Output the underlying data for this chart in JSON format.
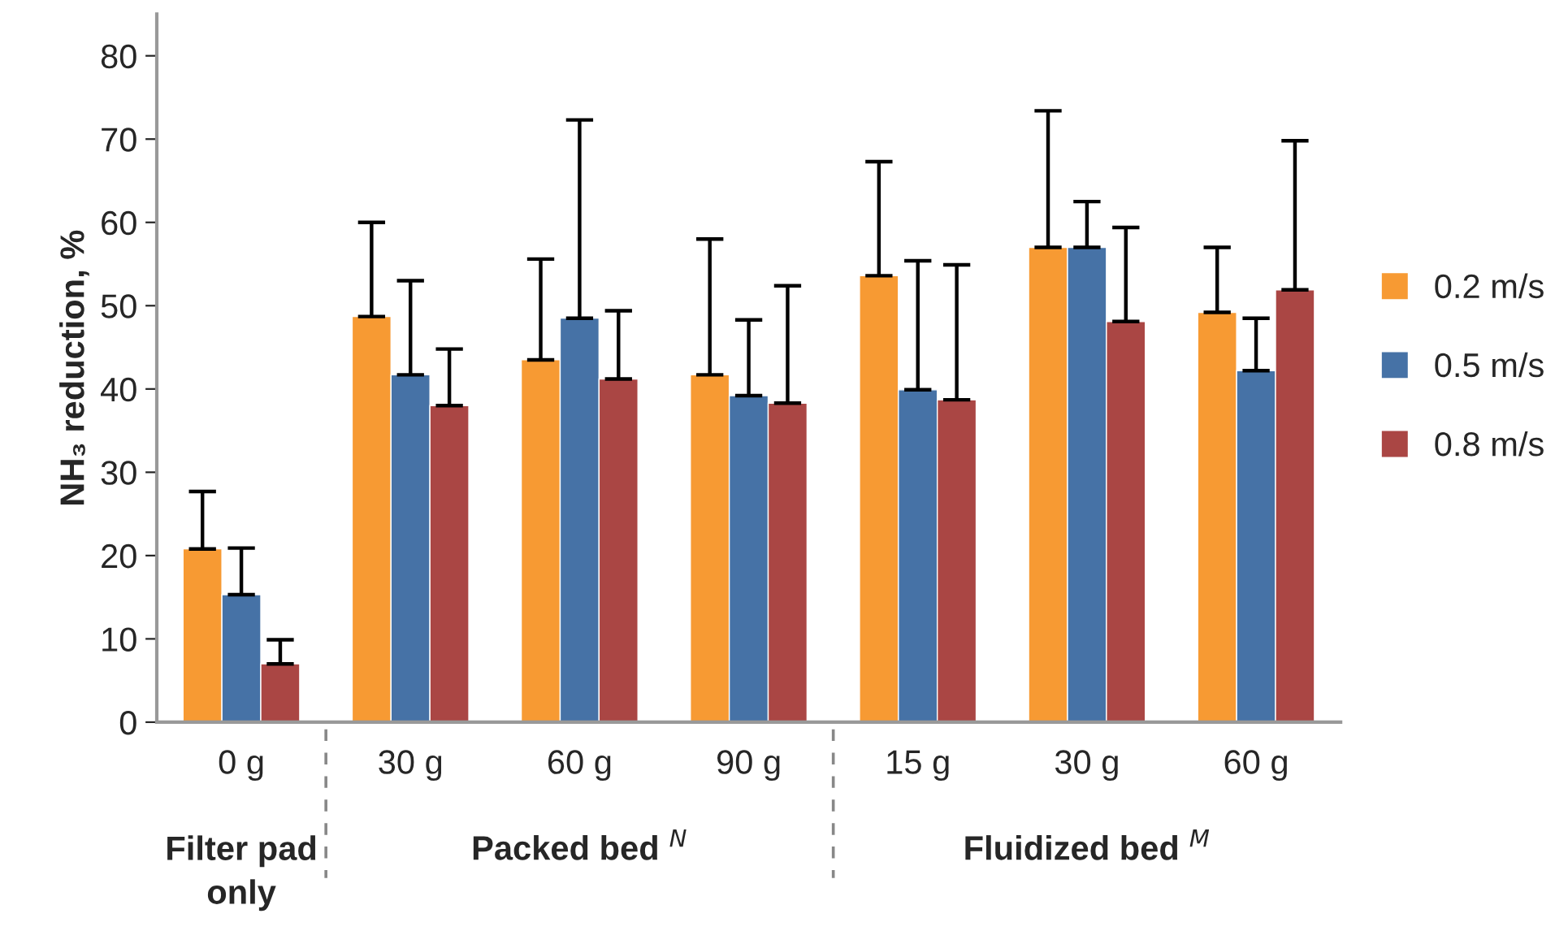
{
  "chart_data": {
    "type": "bar",
    "categories": [
      "0 g",
      "30 g",
      "60 g",
      "90 g",
      "15 g",
      "30 g",
      "60 g"
    ],
    "ylabel": "NH₃ reduction, %",
    "ylim": [
      0,
      85
    ],
    "yticks": [
      0,
      10,
      20,
      30,
      40,
      50,
      60,
      70,
      80
    ],
    "grid": false,
    "legend": "right",
    "annotations": [
      "Filter pad\nonly",
      "Packed bed $^{N}$",
      "Fluidized bed $^{M}$"
    ],
    "series": [
      {
        "name": "0.2 m/s",
        "color": "#f79a33",
        "values": [
          20.8,
          48.7,
          43.5,
          41.7,
          53.6,
          57.0,
          49.2
        ],
        "errors": [
          [
            20.8,
            27.7
          ],
          [
            48.7,
            60.0
          ],
          [
            43.5,
            55.6
          ],
          [
            41.7,
            58.0
          ],
          [
            53.6,
            67.3
          ],
          [
            57.0,
            73.4
          ],
          [
            49.2,
            57.0
          ]
        ]
      },
      {
        "name": "0.5 m/s",
        "color": "#4672a6",
        "values": [
          15.3,
          41.7,
          48.5,
          39.2,
          39.9,
          57.0,
          42.2
        ],
        "errors": [
          [
            15.3,
            20.9
          ],
          [
            41.7,
            53.0
          ],
          [
            48.5,
            72.3
          ],
          [
            39.2,
            48.3
          ],
          [
            39.9,
            55.4
          ],
          [
            57.0,
            62.5
          ],
          [
            42.2,
            48.5
          ]
        ]
      },
      {
        "name": "0.8 m/s",
        "color": "#aa4644",
        "values": [
          7.0,
          38.0,
          41.2,
          38.3,
          38.7,
          48.1,
          51.9
        ],
        "errors": [
          [
            7.0,
            9.9
          ],
          [
            38.0,
            44.8
          ],
          [
            41.2,
            49.4
          ],
          [
            38.3,
            52.4
          ],
          [
            38.7,
            54.9
          ],
          [
            48.1,
            59.4
          ],
          [
            51.9,
            69.8
          ]
        ]
      }
    ]
  }
}
